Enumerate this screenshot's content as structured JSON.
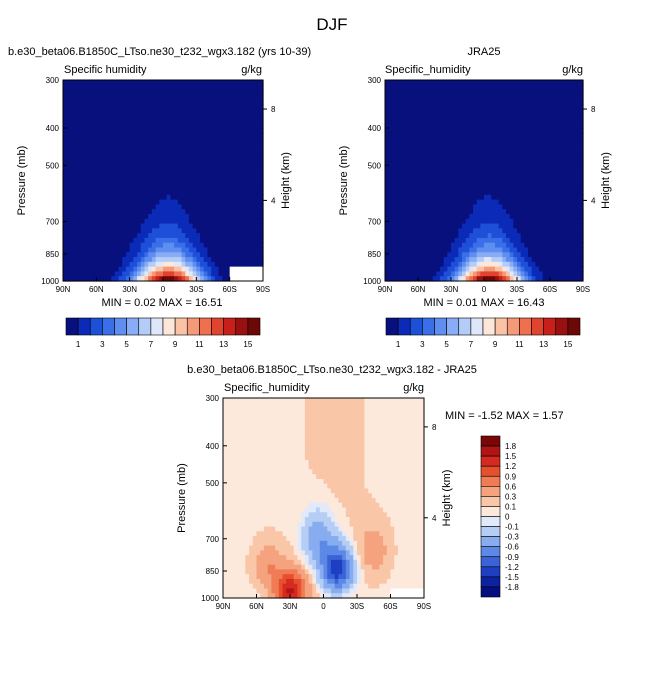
{
  "title": "DJF",
  "panels": {
    "model": {
      "title": "b.e30_beta06.B1850C_LTso.ne30_t232_wgx3.182 (yrs 10-39)",
      "left_label": "Specific humidity",
      "units": "g/kg",
      "min_max": "MIN =  0.02  MAX =  16.51"
    },
    "obs": {
      "title": "JRA25",
      "left_label": "Specific_humidity",
      "units": "g/kg",
      "min_max": "MIN =  0.01  MAX =  16.43"
    },
    "diff": {
      "title": "b.e30_beta06.B1850C_LTso.ne30_t232_wgx3.182 - JRA25",
      "left_label": "Specific_humidity",
      "units": "g/kg",
      "min_max": "MIN = -1.52  MAX =   1.57"
    }
  },
  "colorbars": {
    "abs": {
      "labels": [
        "1",
        "3",
        "5",
        "7",
        "9",
        "11",
        "13",
        "15"
      ],
      "colors": [
        "#08107e",
        "#0b2ab8",
        "#1e4fd8",
        "#3a6fe8",
        "#5f8ef0",
        "#88acf5",
        "#b3ccf8",
        "#dfe8fb",
        "#fde6da",
        "#f9c3a6",
        "#f59a78",
        "#ef6f4e",
        "#e2432e",
        "#c7201a",
        "#981010",
        "#6e0707"
      ]
    },
    "diff": {
      "labels": [
        "1.8",
        "1.5",
        "1.2",
        "0.9",
        "0.6",
        "0.3",
        "0.1",
        "0",
        "-0.1",
        "-0.3",
        "-0.6",
        "-0.9",
        "-1.2",
        "-1.5",
        "-1.8"
      ],
      "colors": [
        "#7a0606",
        "#b01414",
        "#d42a20",
        "#e6502f",
        "#f07c55",
        "#f5a27e",
        "#f9c6a8",
        "#fde8dc",
        "#e0eafa",
        "#b6cdf5",
        "#88acf0",
        "#5c88e6",
        "#3a63d8",
        "#1d3fc2",
        "#0c22a0",
        "#050f80"
      ]
    }
  },
  "chart_data": [
    {
      "type": "heatmap",
      "title": "b.e30_beta06.B1850C_LTso.ne30_t232_wgx3.182 (yrs 10-39)",
      "xlabel": "",
      "ylabel": "Pressure (mb)",
      "y2label": "Height (km)",
      "x_ticks": [
        "90N",
        "60N",
        "30N",
        "0",
        "30S",
        "60S",
        "90S"
      ],
      "y_ticks": [
        300,
        400,
        500,
        700,
        850,
        1000
      ],
      "y2_ticks": [
        8,
        4
      ],
      "y_scale": "log",
      "ylim": [
        1000,
        300
      ],
      "value_range": [
        0.02,
        16.51
      ],
      "peak": {
        "lat": -5,
        "p": 1000,
        "value": 16.51
      },
      "missing_region": {
        "lat": [
          -60,
          -90
        ],
        "p": [
          920,
          1000
        ]
      }
    },
    {
      "type": "heatmap",
      "title": "JRA25",
      "xlabel": "",
      "ylabel": "Pressure (mb)",
      "y2label": "Height (km)",
      "x_ticks": [
        "90N",
        "60N",
        "30N",
        "0",
        "30S",
        "60S",
        "90S"
      ],
      "y_ticks": [
        300,
        400,
        500,
        700,
        850,
        1000
      ],
      "y2_ticks": [
        8,
        4
      ],
      "y_scale": "log",
      "ylim": [
        1000,
        300
      ],
      "value_range": [
        0.01,
        16.43
      ],
      "peak": {
        "lat": -5,
        "p": 1000,
        "value": 16.43
      }
    },
    {
      "type": "heatmap",
      "title": "b.e30_beta06.B1850C_LTso.ne30_t232_wgx3.182 - JRA25",
      "xlabel": "",
      "ylabel": "Pressure (mb)",
      "y2label": "Height (km)",
      "x_ticks": [
        "90N",
        "60N",
        "30N",
        "0",
        "30S",
        "60S",
        "90S"
      ],
      "y_ticks": [
        300,
        400,
        500,
        700,
        850,
        1000
      ],
      "y2_ticks": [
        8,
        4
      ],
      "y_scale": "log",
      "ylim": [
        1000,
        300
      ],
      "value_range": [
        -1.52,
        1.57
      ],
      "features": [
        {
          "lat": 30,
          "p": 960,
          "value": 1.5
        },
        {
          "lat": -12,
          "p": 840,
          "value": -1.5
        },
        {
          "lat": 5,
          "p": 700,
          "value": -0.6
        },
        {
          "lat": -45,
          "p": 750,
          "value": 0.4
        },
        {
          "lat": 50,
          "p": 820,
          "value": 0.5
        }
      ],
      "missing_region": {
        "lat": [
          -60,
          -90
        ],
        "p": [
          950,
          1000
        ]
      }
    }
  ]
}
